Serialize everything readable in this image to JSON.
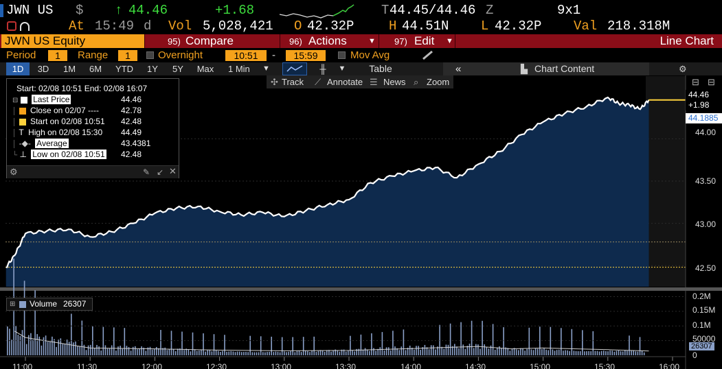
{
  "quote": {
    "ticker": "JWN US",
    "currency_symbol": "$",
    "arrow": "↑",
    "last": "44.46",
    "change": "+1.68",
    "bid_prefix": "T",
    "bid_ask": "44.45/44.46",
    "ask_suffix": "Z",
    "size": "9x1",
    "at_label": "At",
    "time": "15:49",
    "time_flag": "d",
    "vol_label": "Vol",
    "volume": "5,028,421",
    "open_label": "O",
    "open": "42.32P",
    "high_label": "H",
    "high": "44.51N",
    "low_label": "L",
    "low": "42.32P",
    "val_label": "Val",
    "value": "218.318M"
  },
  "toolbar": {
    "security": "JWN US Equity",
    "compare_num": "95)",
    "compare": "Compare",
    "actions_num": "96)",
    "actions": "Actions",
    "edit_num": "97)",
    "edit": "Edit",
    "view": "Line Chart"
  },
  "period_row": {
    "period_label": "Period",
    "period_value": "1",
    "range_label": "Range",
    "range_value": "1",
    "overnight_label": "Overnight",
    "start_time": "10:51",
    "dash": "-",
    "end_time": "15:59",
    "movavg_label": "Mov Avg"
  },
  "range_tabs": [
    "1D",
    "3D",
    "1M",
    "6M",
    "YTD",
    "1Y",
    "5Y",
    "Max",
    "1 Min"
  ],
  "active_tab": "1D",
  "chart_controls": {
    "table_label": "Table",
    "collapse": "«",
    "chart_content": "Chart Content"
  },
  "tools": {
    "track": "Track",
    "annotate": "Annotate",
    "news": "News",
    "zoom": "Zoom"
  },
  "legend": {
    "range": "Start: 02/08 10:51 End: 02/08 16:07",
    "items": [
      {
        "label": "Last Price",
        "value": "44.46",
        "color": "#ffffff"
      },
      {
        "label": "Close on 02/07 ----",
        "value": "42.78",
        "color": "#f6a21a"
      },
      {
        "label": "Start on 02/08 10:51",
        "value": "42.48",
        "color": "#ffd23c"
      },
      {
        "label": "High on 02/08 15:30",
        "value": "44.49",
        "color": "#ffffff"
      },
      {
        "label": "Average",
        "value": "43.4381",
        "color": "#ffffff"
      },
      {
        "label": "Low on 02/08 10:51",
        "value": "42.48",
        "color": "#ffffff"
      }
    ]
  },
  "price_labels": {
    "last": "44.46",
    "change": "+1.98",
    "average": "44.1885"
  },
  "volume_legend": {
    "label": "Volume",
    "value": "26307"
  },
  "volume_last": "26307",
  "volume_axis": [
    "0.2M",
    "0.15M",
    "0.1M",
    "50000",
    "0"
  ],
  "chart_data": {
    "type": "area",
    "y_ticks": [
      "44.00",
      "43.50",
      "43.00",
      "42.50"
    ],
    "ylim": [
      42.25,
      44.75
    ],
    "x_ticks": [
      "11:00",
      "11:30",
      "12:00",
      "12:30",
      "13:00",
      "13:30",
      "14:00",
      "14:30",
      "15:00",
      "15:30",
      "16:00"
    ],
    "reference_lines": {
      "previous_close": 42.78,
      "start": 42.48
    },
    "series": [
      {
        "x": [
          "10:51",
          "10:55",
          "11:00",
          "11:10",
          "11:20",
          "11:30",
          "11:40",
          "11:50",
          "12:00",
          "12:10",
          "12:20",
          "12:30",
          "12:40",
          "12:50",
          "13:00",
          "13:10",
          "13:20",
          "13:30",
          "13:40",
          "13:50",
          "14:00",
          "14:10",
          "14:20",
          "14:30",
          "14:40",
          "14:50",
          "15:00",
          "15:10",
          "15:20",
          "15:30",
          "15:35",
          "15:40",
          "15:45",
          "15:49",
          "16:07"
        ],
        "values": [
          42.48,
          42.62,
          42.88,
          42.91,
          42.93,
          42.84,
          42.9,
          43.0,
          43.12,
          43.18,
          43.2,
          43.14,
          43.1,
          43.13,
          43.08,
          43.15,
          43.22,
          43.28,
          43.48,
          43.56,
          43.62,
          43.66,
          43.54,
          43.7,
          43.85,
          44.05,
          44.2,
          44.3,
          44.38,
          44.49,
          44.42,
          44.4,
          44.35,
          44.46,
          44.46
        ]
      }
    ],
    "volume": {
      "ylim": [
        0,
        220000
      ],
      "x": [
        "10:55",
        "11:00",
        "11:30",
        "12:00",
        "12:30",
        "13:00",
        "13:30",
        "14:00",
        "14:30",
        "14:45",
        "15:00",
        "15:30",
        "15:49"
      ],
      "values": [
        150000,
        110000,
        45000,
        40000,
        32000,
        28000,
        30000,
        42000,
        55000,
        40000,
        45000,
        35000,
        26307
      ]
    }
  }
}
